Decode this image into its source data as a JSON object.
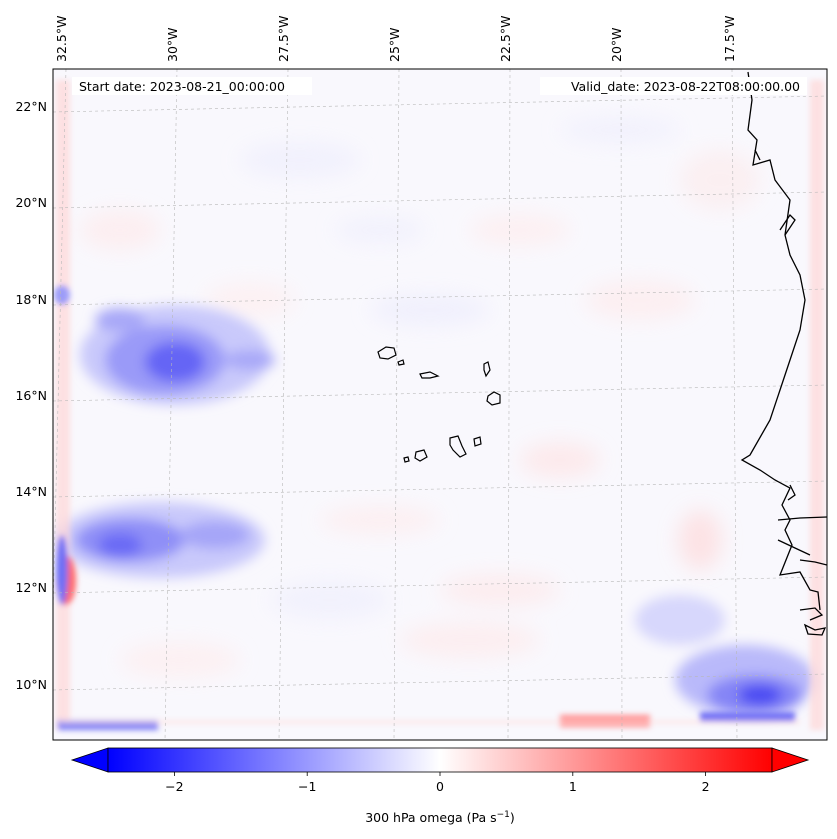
{
  "header": {
    "start_date": "Start date: 2023-08-21_00:00:00",
    "valid_date": "Valid_date: 2023-08-22T08:00:00.00"
  },
  "map": {
    "lon_labels": [
      "32.5°W",
      "30°W",
      "27.5°W",
      "25°W",
      "22.5°W",
      "20°W",
      "17.5°W"
    ],
    "lat_labels": [
      "22°N",
      "20°N",
      "18°N",
      "16°N",
      "14°N",
      "12°N",
      "10°N"
    ],
    "lon_range": [
      -33.0,
      -15.5
    ],
    "lat_range": [
      8.9,
      22.7
    ],
    "gridlines": true
  },
  "colorbar": {
    "label_main": "300 hPa omega (Pa s",
    "label_sup": "−1",
    "label_end": ")",
    "tick_labels": [
      "−2",
      "−1",
      "0",
      "1",
      "2"
    ],
    "tick_values": [
      -2,
      -1,
      0,
      1,
      2
    ],
    "range": [
      -2.5,
      2.5
    ],
    "extend": "both",
    "low_color": "#0000ff",
    "mid_color": "#ffffff",
    "high_color": "#ff0000"
  }
}
